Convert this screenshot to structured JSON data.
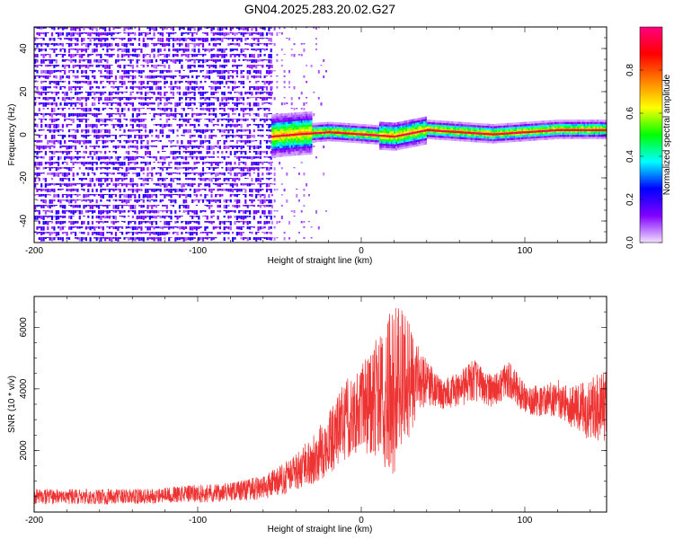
{
  "title": "GN04.2025.283.20.02.G27",
  "chart_data": [
    {
      "type": "heatmap",
      "xlabel": "Height of straight line (km)",
      "ylabel": "Frequency (Hz)",
      "xlim": [
        -200,
        150
      ],
      "ylim": [
        -50,
        50
      ],
      "x_ticks": [
        -200,
        -100,
        0,
        100
      ],
      "y_ticks": [
        -40,
        -20,
        0,
        20,
        40
      ],
      "colorbar": {
        "label": "Normalized spectral amplitude",
        "range": [
          0.0,
          1.0
        ],
        "ticks": [
          0.0,
          0.2,
          0.4,
          0.6,
          0.8
        ],
        "colormap": [
          "#f2e0ff",
          "#8000ff",
          "#0000ff",
          "#00ffff",
          "#00ff00",
          "#ffff00",
          "#ff8000",
          "#ff0000",
          "#ff0080"
        ]
      },
      "regions": [
        {
          "x": [
            -200,
            -55
          ],
          "pattern": "broadband noise across all frequencies",
          "amplitude": 0.15
        },
        {
          "x": [
            -55,
            -20
          ],
          "pattern": "faint noise, concentrated signal near 0 Hz",
          "amplitude": 0.05
        },
        {
          "x": [
            -55,
            150
          ],
          "pattern": "narrow tone near 0 Hz",
          "amplitude": 0.9
        }
      ],
      "tone_track": [
        {
          "x": -55,
          "y": -1
        },
        {
          "x": -40,
          "y": 0
        },
        {
          "x": -20,
          "y": 1
        },
        {
          "x": 0,
          "y": 0
        },
        {
          "x": 20,
          "y": -1
        },
        {
          "x": 40,
          "y": 2
        },
        {
          "x": 60,
          "y": 1
        },
        {
          "x": 80,
          "y": 0
        },
        {
          "x": 100,
          "y": 1
        },
        {
          "x": 120,
          "y": 2
        },
        {
          "x": 150,
          "y": 2
        }
      ]
    },
    {
      "type": "line",
      "xlabel": "Height of straight line (km)",
      "ylabel": "SNR (10 * v/v)",
      "xlim": [
        -200,
        150
      ],
      "ylim": [
        0,
        7000
      ],
      "x_ticks": [
        -200,
        -100,
        0,
        100
      ],
      "y_ticks": [
        2000,
        4000,
        6000
      ],
      "line_color": "#ee3333",
      "series": [
        {
          "x": [
            -200,
            -180,
            -160,
            -140,
            -120,
            -100,
            -80,
            -60,
            -50,
            -40,
            -30,
            -20,
            -10,
            0,
            10,
            20,
            25,
            30,
            40,
            50,
            60,
            70,
            80,
            90,
            100,
            110,
            120,
            130,
            140,
            150
          ],
          "y": [
            500,
            500,
            500,
            500,
            550,
            600,
            650,
            800,
            1000,
            1300,
            1700,
            2200,
            3000,
            3400,
            3700,
            3900,
            4200,
            4300,
            4200,
            3800,
            4000,
            4300,
            3900,
            4300,
            3700,
            3600,
            3700,
            3400,
            3300,
            3500
          ],
          "spread": [
            250,
            250,
            250,
            250,
            250,
            300,
            300,
            400,
            500,
            600,
            800,
            1000,
            1300,
            1400,
            2000,
            2800,
            2500,
            1800,
            700,
            500,
            600,
            700,
            500,
            600,
            500,
            500,
            600,
            700,
            1000,
            1200
          ]
        }
      ]
    }
  ]
}
